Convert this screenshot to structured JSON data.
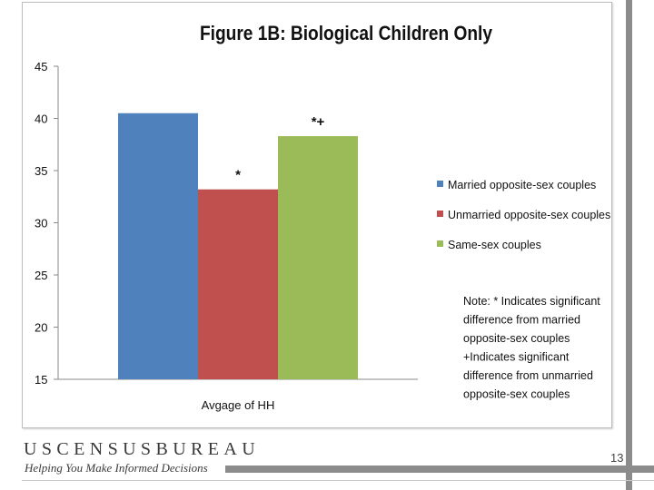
{
  "chart_data": {
    "type": "bar",
    "title": "Figure 1B: Biological Children Only",
    "categories": [
      "Avgage of HH"
    ],
    "series": [
      {
        "name": "Married  opposite-sex couples",
        "values": [
          40.5
        ],
        "annotation": "",
        "color": "#4f81bd"
      },
      {
        "name": "Unmarried opposite-sex couples",
        "values": [
          33.2
        ],
        "annotation": "*",
        "color": "#c0504d"
      },
      {
        "name": "Same-sex couples",
        "values": [
          38.3
        ],
        "annotation": "*+",
        "color": "#9bbb59"
      }
    ],
    "ylim": [
      15,
      45
    ],
    "yticks": [
      15,
      20,
      25,
      30,
      35,
      40,
      45
    ],
    "grid": false,
    "legend_position": "right",
    "note": [
      "Note: * Indicates significant",
      "difference from married",
      "opposite-sex couples",
      "+Indicates significant",
      "difference from unmarried",
      "opposite-sex couples"
    ]
  },
  "footer": {
    "brand": "USCENSUSBUREAU",
    "tagline": "Helping You Make Informed Decisions",
    "slide_number": "13"
  }
}
